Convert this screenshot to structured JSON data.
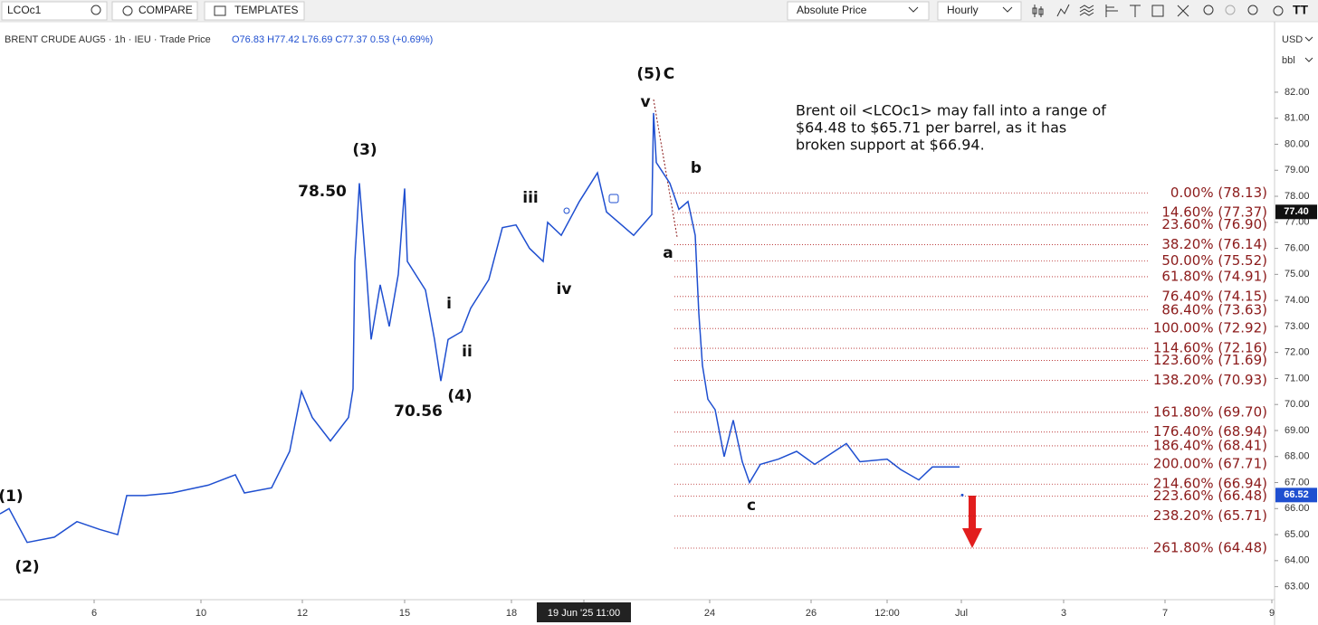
{
  "toolbar": {
    "symbol": "LCOc1",
    "compare": "COMPARE",
    "templates": "TEMPLATES",
    "price_mode": "Absolute Price",
    "interval": "Hourly"
  },
  "chart_data": {
    "type": "line",
    "header": "BRENT CRUDE AUG5 · 1h · IEU · Trade Price",
    "ohlc": "O76.83 H77.42 L76.69 C77.37 0.53 (+0.69%)",
    "currency": "USD",
    "unit": "bbl",
    "series": [
      {
        "name": "LCOc1",
        "color": "#1f4fd0",
        "x": [
          0,
          2.5,
          7.5,
          15,
          21.25,
          27.5,
          32.5,
          35,
          40,
          47.5,
          57.5,
          65,
          67.5,
          75,
          80,
          83.25,
          86.25,
          91.25,
          96.25,
          97.5,
          98,
          99.25,
          101.25,
          102.5,
          105,
          107.5,
          110,
          111.75,
          112.5,
          117.5,
          120,
          121.75,
          123.75,
          127.5,
          130,
          135,
          138.75,
          142.5,
          146.25,
          150,
          151.25,
          155,
          160,
          165,
          167.5,
          172.5,
          175,
          180,
          180.5,
          181.25,
          185,
          187.5,
          190,
          192,
          193,
          194,
          195.5,
          197.5,
          200,
          202.5,
          205,
          207,
          210,
          215,
          220,
          225,
          233.75,
          237.5,
          245,
          248.75,
          253.75,
          257.5,
          265
        ],
        "values": [
          65.8,
          66.0,
          64.7,
          64.9,
          65.5,
          65.2,
          65.0,
          66.5,
          66.5,
          66.6,
          66.9,
          67.3,
          66.6,
          66.8,
          68.2,
          70.5,
          69.5,
          68.6,
          69.5,
          70.6,
          75.5,
          78.5,
          75.0,
          72.5,
          74.6,
          73.0,
          75.0,
          78.3,
          75.5,
          74.4,
          72.5,
          70.9,
          72.5,
          72.8,
          73.7,
          74.8,
          76.8,
          76.9,
          76.0,
          75.5,
          77.0,
          76.5,
          77.8,
          78.9,
          77.4,
          76.8,
          76.5,
          77.3,
          81.2,
          79.3,
          78.5,
          77.5,
          77.8,
          76.5,
          73.5,
          71.5,
          70.2,
          69.8,
          68.0,
          69.4,
          67.8,
          67.0,
          67.7,
          67.9,
          68.2,
          67.7,
          68.5,
          67.8,
          67.9,
          67.5,
          67.1,
          67.6,
          67.6
        ]
      }
    ],
    "last_price": {
      "value": 77.4,
      "label": "77.40"
    },
    "last_close": {
      "value": 66.52,
      "label": "66.52"
    },
    "xlim": [
      0,
      352
    ],
    "xticks": [
      {
        "value": 26,
        "label": "6"
      },
      {
        "value": 55.5,
        "label": "10"
      },
      {
        "value": 83.5,
        "label": "12"
      },
      {
        "value": 111.75,
        "label": "15"
      },
      {
        "value": 141.25,
        "label": "18"
      },
      {
        "value": 161.25,
        "label": "19 Jun '25  11:00"
      },
      {
        "value": 196,
        "label": "24"
      },
      {
        "value": 224,
        "label": "26"
      },
      {
        "value": 245,
        "label": "12:00"
      },
      {
        "value": 265.5,
        "label": "Jul"
      },
      {
        "value": 293.75,
        "label": "3"
      },
      {
        "value": 321.75,
        "label": "7"
      },
      {
        "value": 351.25,
        "label": "9"
      }
    ],
    "ylim": [
      62.5,
      84.5
    ],
    "yticks": [
      {
        "value": 63,
        "label": "63.00"
      },
      {
        "value": 64,
        "label": "64.00"
      },
      {
        "value": 65,
        "label": "65.00"
      },
      {
        "value": 66,
        "label": "66.00"
      },
      {
        "value": 67,
        "label": "67.00"
      },
      {
        "value": 68,
        "label": "68.00"
      },
      {
        "value": 69,
        "label": "69.00"
      },
      {
        "value": 70,
        "label": "70.00"
      },
      {
        "value": 71,
        "label": "71.00"
      },
      {
        "value": 72,
        "label": "72.00"
      },
      {
        "value": 73,
        "label": "73.00"
      },
      {
        "value": 74,
        "label": "74.00"
      },
      {
        "value": 75,
        "label": "75.00"
      },
      {
        "value": 76,
        "label": "76.00"
      },
      {
        "value": 77,
        "label": "77.00"
      },
      {
        "value": 78,
        "label": "78.00"
      },
      {
        "value": 79,
        "label": "79.00"
      },
      {
        "value": 80,
        "label": "80.00"
      },
      {
        "value": 81,
        "label": "81.00"
      },
      {
        "value": 82,
        "label": "82.00"
      }
    ],
    "fib_levels": [
      {
        "value": 78.13,
        "label": "0.00% (78.13)"
      },
      {
        "value": 77.37,
        "label": "14.60% (77.37)"
      },
      {
        "value": 76.9,
        "label": "23.60% (76.90)"
      },
      {
        "value": 76.14,
        "label": "38.20% (76.14)"
      },
      {
        "value": 75.52,
        "label": "50.00% (75.52)"
      },
      {
        "value": 74.91,
        "label": "61.80% (74.91)"
      },
      {
        "value": 74.15,
        "label": "76.40% (74.15)"
      },
      {
        "value": 73.63,
        "label": "86.40% (73.63)"
      },
      {
        "value": 72.92,
        "label": "100.00% (72.92)"
      },
      {
        "value": 72.16,
        "label": "114.60% (72.16)"
      },
      {
        "value": 71.69,
        "label": "123.60% (71.69)"
      },
      {
        "value": 70.93,
        "label": "138.20% (70.93)"
      },
      {
        "value": 69.7,
        "label": "161.80% (69.70)"
      },
      {
        "value": 68.94,
        "label": "176.40% (68.94)"
      },
      {
        "value": 68.41,
        "label": "186.40% (68.41)"
      },
      {
        "value": 67.71,
        "label": "200.00% (67.71)"
      },
      {
        "value": 66.94,
        "label": "214.60% (66.94)"
      },
      {
        "value": 66.48,
        "label": "223.60% (66.48)"
      },
      {
        "value": 65.71,
        "label": "238.20% (65.71)"
      },
      {
        "value": 64.48,
        "label": "261.80% (64.48)"
      }
    ],
    "wave_labels": [
      "(1)",
      "(2)",
      "(3)",
      "78.50",
      "(4)",
      "70.56",
      "i",
      "ii",
      "iii",
      "iv",
      "(5)",
      "C",
      "v",
      "a",
      "b",
      "c"
    ],
    "annotation": [
      "Brent oil <LCOc1> may fall into a range of",
      "$64.48 to $65.71 per  barrel, as it has",
      "broken support at $66.94."
    ]
  }
}
